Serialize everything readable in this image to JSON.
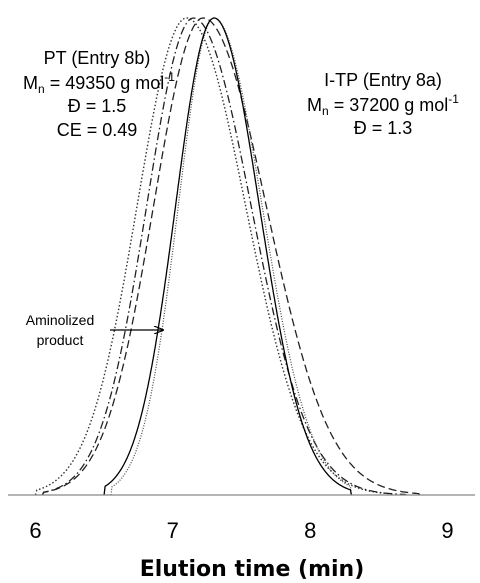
{
  "chart_data": {
    "type": "line",
    "xlabel": "Elution time (min)",
    "ylabel": "",
    "xlim": [
      5.8,
      9.2
    ],
    "ylim": [
      0,
      1
    ],
    "x_ticks": [
      "6",
      "7",
      "8",
      "9"
    ],
    "grid": false,
    "legend": "none",
    "series": [
      {
        "style": "dotted",
        "peak": 7.1,
        "left_sigma": 0.36,
        "right_sigma": 0.43,
        "range": [
          6.0,
          8.6
        ]
      },
      {
        "style": "dash-dot",
        "peak": 7.15,
        "left_sigma": 0.34,
        "right_sigma": 0.42,
        "range": [
          6.05,
          8.7
        ]
      },
      {
        "style": "dashed",
        "peak": 7.22,
        "left_sigma": 0.36,
        "right_sigma": 0.46,
        "range": [
          6.05,
          8.8
        ]
      },
      {
        "style": "thin-dotted",
        "peak": 7.3,
        "left_sigma": 0.26,
        "right_sigma": 0.35,
        "range": [
          6.55,
          8.3
        ]
      },
      {
        "style": "solid",
        "peak": 7.3,
        "left_sigma": 0.28,
        "right_sigma": 0.33,
        "range": [
          6.5,
          8.3
        ]
      }
    ],
    "annotations": {
      "pt": {
        "line1": "PT (Entry 8b)",
        "mn_prefix": "M",
        "mn_sub": "n",
        "mn_value": " = 49350 g mol",
        "mn_sup": "-1",
        "dispersity": "Đ = 1.5",
        "ce": "CE = 0.49"
      },
      "itp": {
        "line1": "I-TP (Entry 8a)",
        "mn_prefix": "M",
        "mn_sub": "n",
        "mn_value": " = 37200 g mol",
        "mn_sup": "-1",
        "dispersity": "Đ = 1.3"
      },
      "aminolized": {
        "line1": "Aminolized",
        "line2": "product"
      }
    }
  }
}
